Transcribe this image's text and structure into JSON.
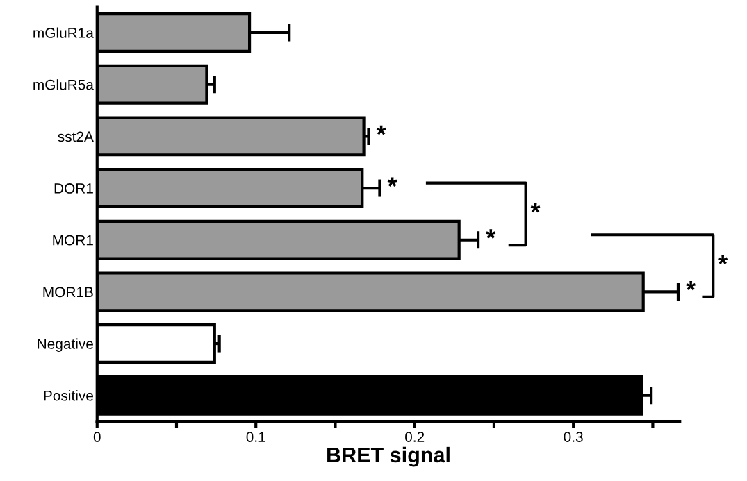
{
  "chart_data": {
    "type": "bar",
    "orientation": "horizontal",
    "xlabel": "BRET signal",
    "categories": [
      "mGluR1a",
      "mGluR5a",
      "sst2A",
      "DOR1",
      "MOR1",
      "MOR1B",
      "Negative",
      "Positive"
    ],
    "values": [
      0.096,
      0.069,
      0.168,
      0.167,
      0.228,
      0.344,
      0.074,
      0.343
    ],
    "errors": [
      0.025,
      0.005,
      0.003,
      0.011,
      0.012,
      0.022,
      0.003,
      0.006
    ],
    "colors": [
      "#9a9a9a",
      "#9a9a9a",
      "#9a9a9a",
      "#9a9a9a",
      "#9a9a9a",
      "#9a9a9a",
      "#ffffff",
      "#000000"
    ],
    "xlim": [
      0,
      0.367
    ],
    "xticks": [
      0,
      {
        "value": 0.05,
        "label": null
      },
      0.1,
      {
        "value": 0.15,
        "label": null
      },
      0.2,
      {
        "value": 0.25,
        "label": null
      },
      0.3,
      {
        "value": 0.35,
        "label": null
      }
    ],
    "annotations": [
      {
        "text": "*",
        "x": 0.171,
        "y": "sst2A"
      },
      {
        "text": "*",
        "x": 0.178,
        "y": "DOR1"
      },
      {
        "text": "*",
        "x": 0.24,
        "y": "MOR1"
      },
      {
        "text": "*",
        "x": 0.366,
        "y": "MOR1B"
      },
      "*",
      "*"
    ],
    "grid": false
  }
}
